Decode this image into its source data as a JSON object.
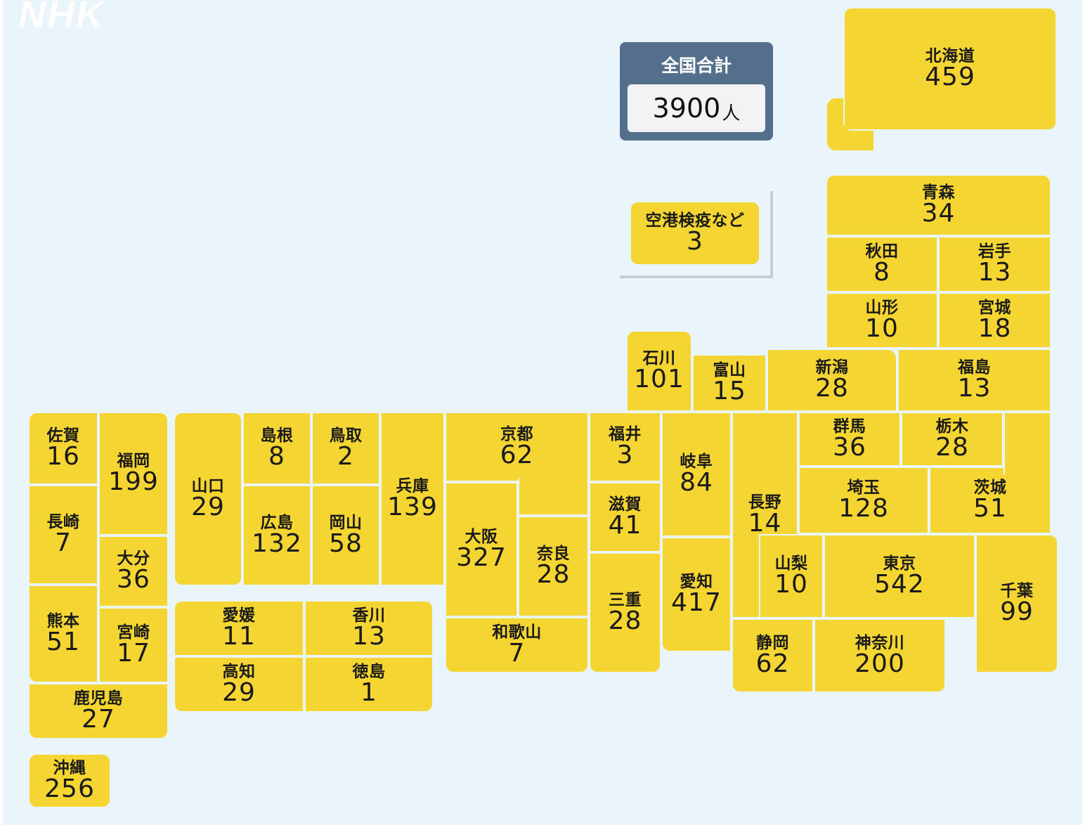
{
  "logo": "NHK",
  "total": {
    "label": "全国合計",
    "value": "3900",
    "unit": "人"
  },
  "colors": {
    "background": "#eaf4fb",
    "tile": "#f5d532",
    "total_box": "#546f8c"
  },
  "prefectures": [
    {
      "key": "hokkaido",
      "name": "北海道",
      "count": 459
    },
    {
      "key": "aomori",
      "name": "青森",
      "count": 34
    },
    {
      "key": "akita",
      "name": "秋田",
      "count": 8
    },
    {
      "key": "iwate",
      "name": "岩手",
      "count": 13
    },
    {
      "key": "yamagata",
      "name": "山形",
      "count": 10
    },
    {
      "key": "miyagi",
      "name": "宮城",
      "count": 18
    },
    {
      "key": "ishikawa",
      "name": "石川",
      "count": 101
    },
    {
      "key": "toyama",
      "name": "富山",
      "count": 15
    },
    {
      "key": "niigata",
      "name": "新潟",
      "count": 28
    },
    {
      "key": "fukushima",
      "name": "福島",
      "count": 13
    },
    {
      "key": "saga",
      "name": "佐賀",
      "count": 16
    },
    {
      "key": "fukuoka",
      "name": "福岡",
      "count": 199
    },
    {
      "key": "yamaguchi",
      "name": "山口",
      "count": 29
    },
    {
      "key": "shimane",
      "name": "島根",
      "count": 8
    },
    {
      "key": "tottori",
      "name": "鳥取",
      "count": 2
    },
    {
      "key": "hyogo",
      "name": "兵庫",
      "count": 139
    },
    {
      "key": "kyoto",
      "name": "京都",
      "count": 62
    },
    {
      "key": "fukui",
      "name": "福井",
      "count": 3
    },
    {
      "key": "gifu",
      "name": "岐阜",
      "count": 84
    },
    {
      "key": "nagano",
      "name": "長野",
      "count": 14
    },
    {
      "key": "gunma",
      "name": "群馬",
      "count": 36
    },
    {
      "key": "tochigi",
      "name": "栃木",
      "count": 28
    },
    {
      "key": "nagasaki",
      "name": "長崎",
      "count": 7
    },
    {
      "key": "hiroshima",
      "name": "広島",
      "count": 132
    },
    {
      "key": "okayama",
      "name": "岡山",
      "count": 58
    },
    {
      "key": "osaka",
      "name": "大阪",
      "count": 327
    },
    {
      "key": "shiga",
      "name": "滋賀",
      "count": 41
    },
    {
      "key": "saitama",
      "name": "埼玉",
      "count": 128
    },
    {
      "key": "ibaraki",
      "name": "茨城",
      "count": 51
    },
    {
      "key": "oita",
      "name": "大分",
      "count": 36
    },
    {
      "key": "nara",
      "name": "奈良",
      "count": 28
    },
    {
      "key": "yamanashi",
      "name": "山梨",
      "count": 10
    },
    {
      "key": "tokyo",
      "name": "東京",
      "count": 542
    },
    {
      "key": "chiba",
      "name": "千葉",
      "count": 99
    },
    {
      "key": "kumamoto",
      "name": "熊本",
      "count": 51
    },
    {
      "key": "miyazaki",
      "name": "宮崎",
      "count": 17
    },
    {
      "key": "ehime",
      "name": "愛媛",
      "count": 11
    },
    {
      "key": "kagawa",
      "name": "香川",
      "count": 13
    },
    {
      "key": "mie",
      "name": "三重",
      "count": 28
    },
    {
      "key": "aichi",
      "name": "愛知",
      "count": 417
    },
    {
      "key": "wakayama",
      "name": "和歌山",
      "count": 7
    },
    {
      "key": "shizuoka",
      "name": "静岡",
      "count": 62
    },
    {
      "key": "kanagawa",
      "name": "神奈川",
      "count": 200
    },
    {
      "key": "kochi",
      "name": "高知",
      "count": 29
    },
    {
      "key": "tokushima",
      "name": "徳島",
      "count": 1
    },
    {
      "key": "kagoshima",
      "name": "鹿児島",
      "count": 27
    },
    {
      "key": "okinawa",
      "name": "沖縄",
      "count": 256
    },
    {
      "key": "airport",
      "name": "空港検疫など",
      "count": 3
    }
  ]
}
